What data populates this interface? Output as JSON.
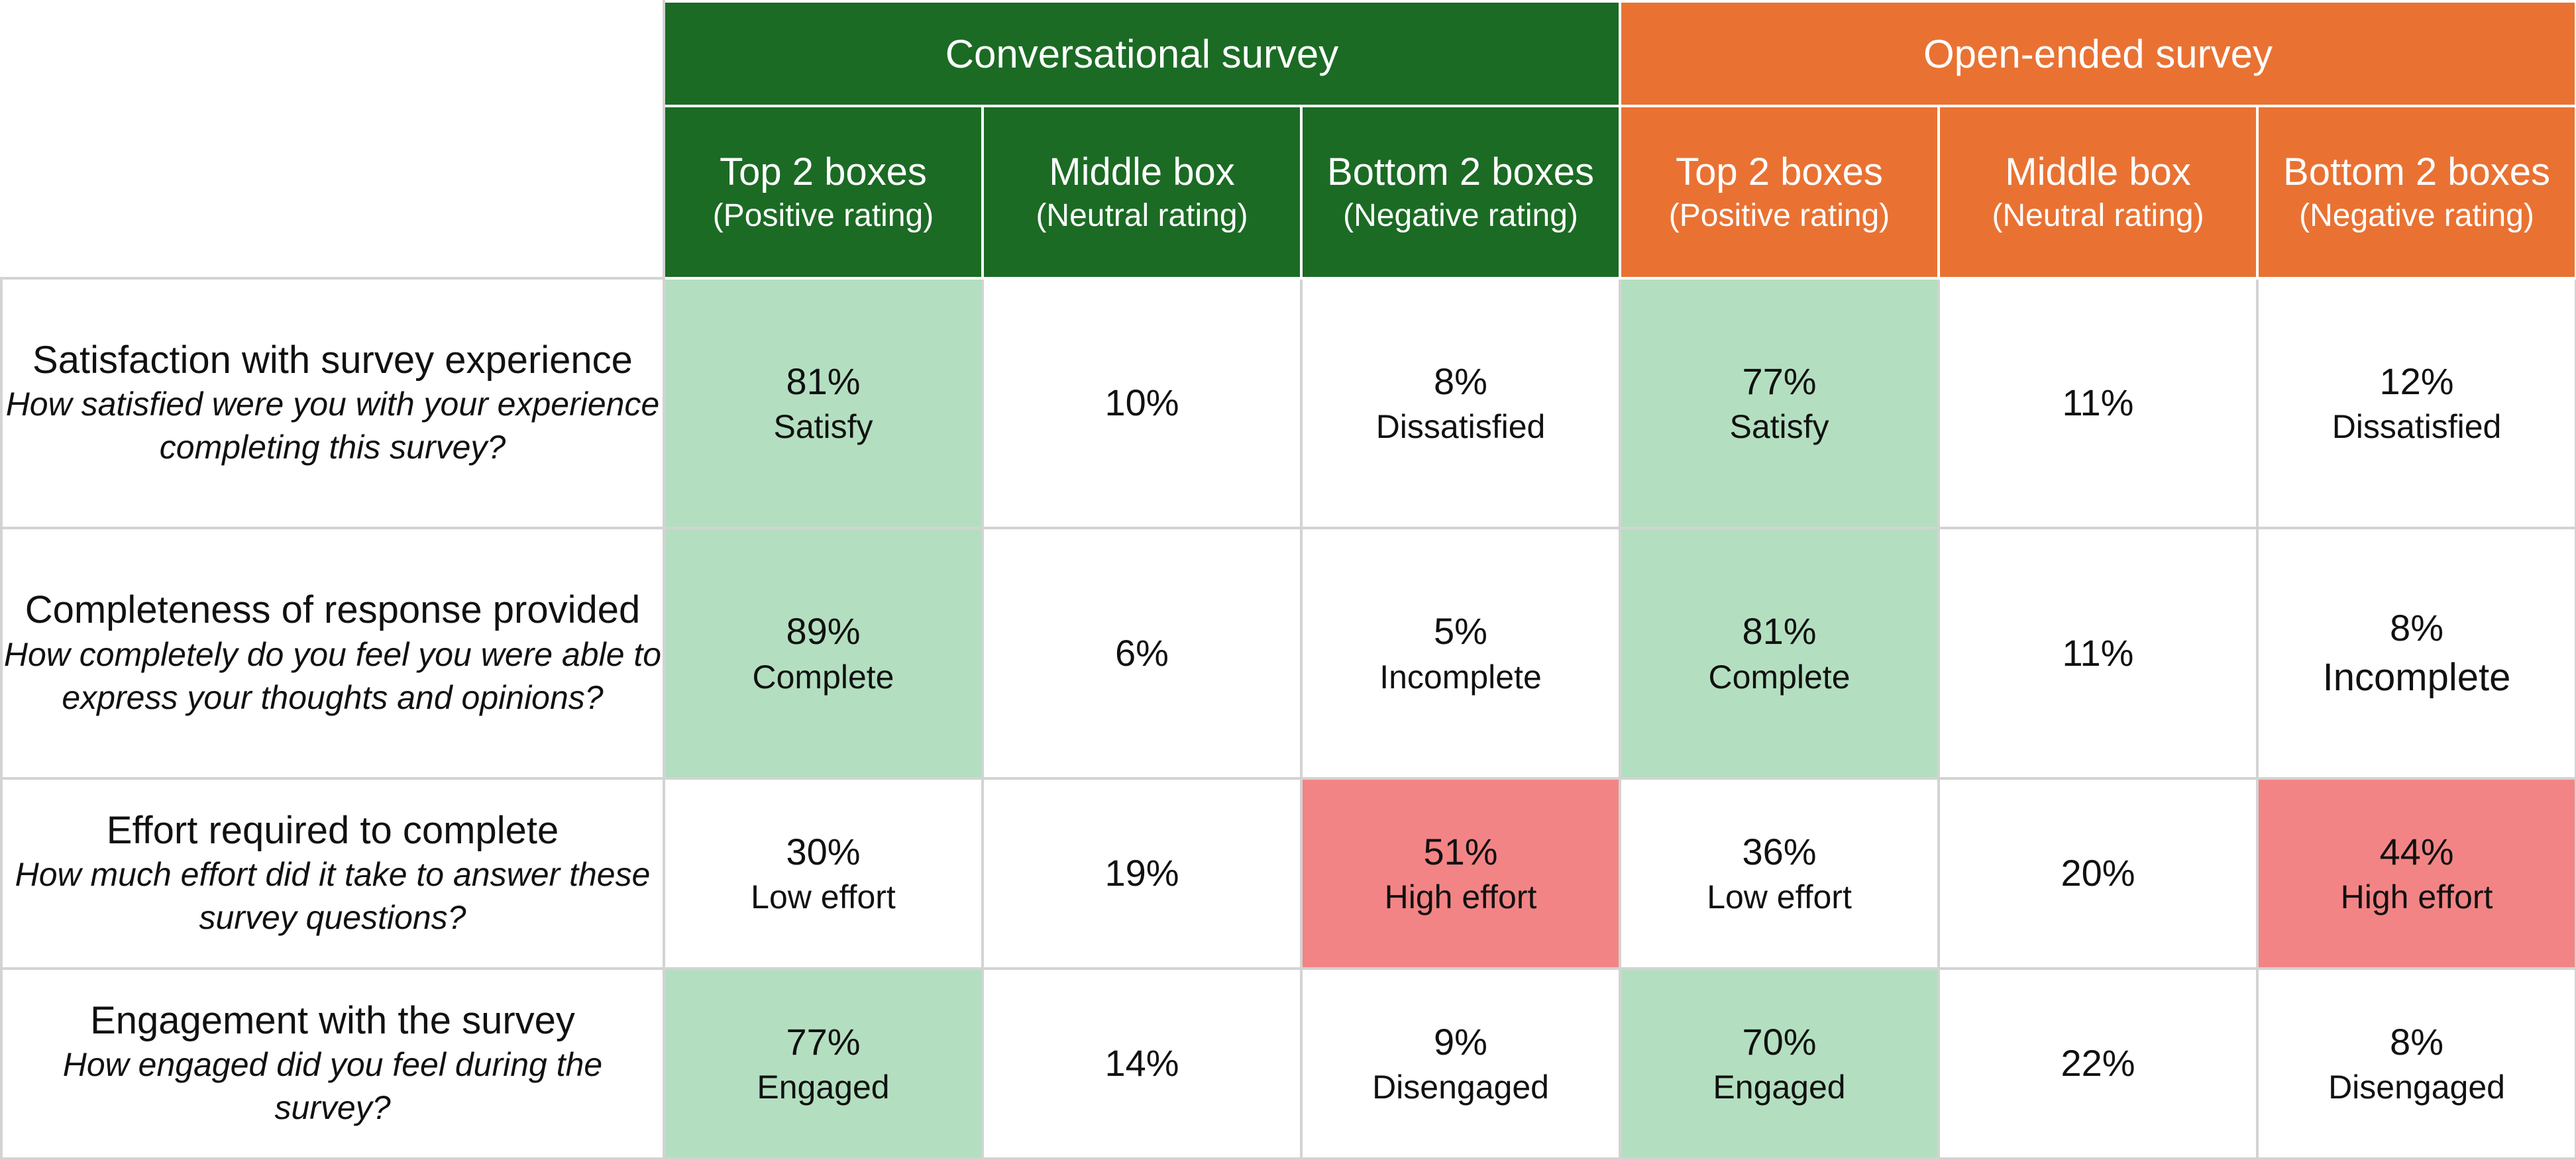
{
  "chart_data": {
    "type": "table",
    "groups": [
      {
        "name": "Conversational survey",
        "color": "#1b6b24"
      },
      {
        "name": "Open-ended survey",
        "color": "#e97233"
      }
    ],
    "subcolumns": [
      {
        "title": "Top 2 boxes",
        "subtitle": "(Positive rating)"
      },
      {
        "title": "Middle box",
        "subtitle": "(Neutral rating)"
      },
      {
        "title": "Bottom 2 boxes",
        "subtitle": "(Negative rating)"
      }
    ],
    "highlight_colors": {
      "positive": "#b3dfc0",
      "negative": "#f38485"
    },
    "rows": [
      {
        "metric": "Satisfaction with survey experience",
        "question": "How satisfied were you with your experience completing this survey?",
        "cells": [
          {
            "value": "81%",
            "label": "Satisfy",
            "highlight": "positive"
          },
          {
            "value": "10%",
            "label": "",
            "highlight": "none"
          },
          {
            "value": "8%",
            "label": "Dissatisfied",
            "highlight": "none"
          },
          {
            "value": "77%",
            "label": "Satisfy",
            "highlight": "positive"
          },
          {
            "value": "11%",
            "label": "",
            "highlight": "none"
          },
          {
            "value": "12%",
            "label": "Dissatisfied",
            "highlight": "none"
          }
        ]
      },
      {
        "metric": "Completeness of response provided",
        "question": "How completely do you feel you were able to express your thoughts and opinions?",
        "cells": [
          {
            "value": "89%",
            "label": "Complete",
            "highlight": "positive"
          },
          {
            "value": "6%",
            "label": "",
            "highlight": "none"
          },
          {
            "value": "5%",
            "label": "Incomplete",
            "highlight": "none"
          },
          {
            "value": "81%",
            "label": "Complete",
            "highlight": "positive"
          },
          {
            "value": "11%",
            "label": "",
            "highlight": "none"
          },
          {
            "value": "8%",
            "label": "Incomplete",
            "highlight": "none"
          }
        ]
      },
      {
        "metric": "Effort required to complete",
        "question": "How much effort did it take to answer these survey questions?",
        "cells": [
          {
            "value": "30%",
            "label": "Low effort",
            "highlight": "none"
          },
          {
            "value": "19%",
            "label": "",
            "highlight": "none"
          },
          {
            "value": "51%",
            "label": "High effort",
            "highlight": "negative"
          },
          {
            "value": "36%",
            "label": "Low effort",
            "highlight": "none"
          },
          {
            "value": "20%",
            "label": "",
            "highlight": "none"
          },
          {
            "value": "44%",
            "label": "High effort",
            "highlight": "negative"
          }
        ]
      },
      {
        "metric": "Engagement with the survey",
        "question": "How engaged did you feel during the survey?",
        "cells": [
          {
            "value": "77%",
            "label": "Engaged",
            "highlight": "positive"
          },
          {
            "value": "14%",
            "label": "",
            "highlight": "none"
          },
          {
            "value": "9%",
            "label": "Disengaged",
            "highlight": "none"
          },
          {
            "value": "70%",
            "label": "Engaged",
            "highlight": "positive"
          },
          {
            "value": "22%",
            "label": "",
            "highlight": "none"
          },
          {
            "value": "8%",
            "label": "Disengaged",
            "highlight": "none"
          }
        ]
      }
    ]
  }
}
